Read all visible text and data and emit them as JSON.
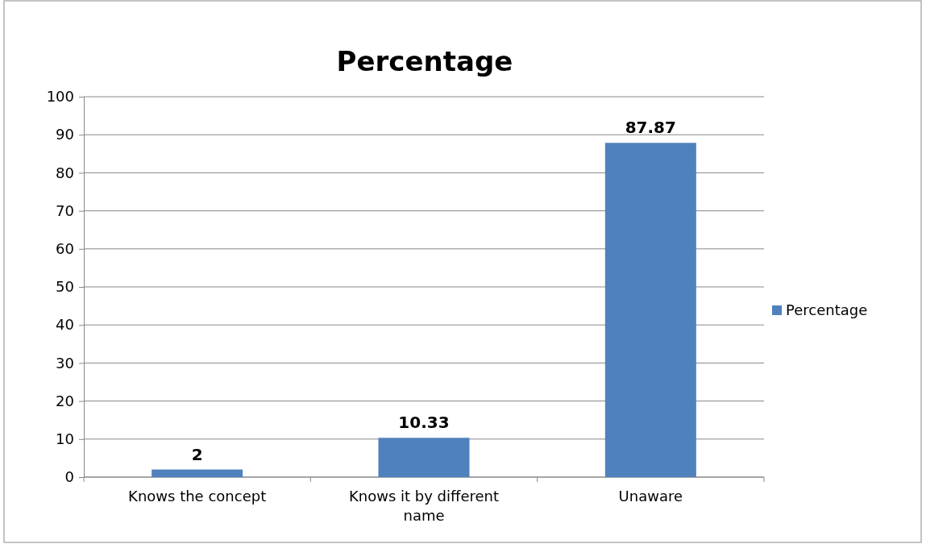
{
  "chart_data": {
    "type": "bar",
    "title": "Percentage",
    "categories": [
      "Knows the concept",
      "Knows it by different name",
      "Unaware"
    ],
    "series": [
      {
        "name": "Percentage",
        "color": "#4f81bd",
        "values": [
          2,
          10.33,
          87.87
        ]
      }
    ],
    "ylim": [
      0,
      100
    ],
    "yticks": [
      0,
      10,
      20,
      30,
      40,
      50,
      60,
      70,
      80,
      90,
      100
    ],
    "grid": "y",
    "legend": "right",
    "data_labels": true
  }
}
